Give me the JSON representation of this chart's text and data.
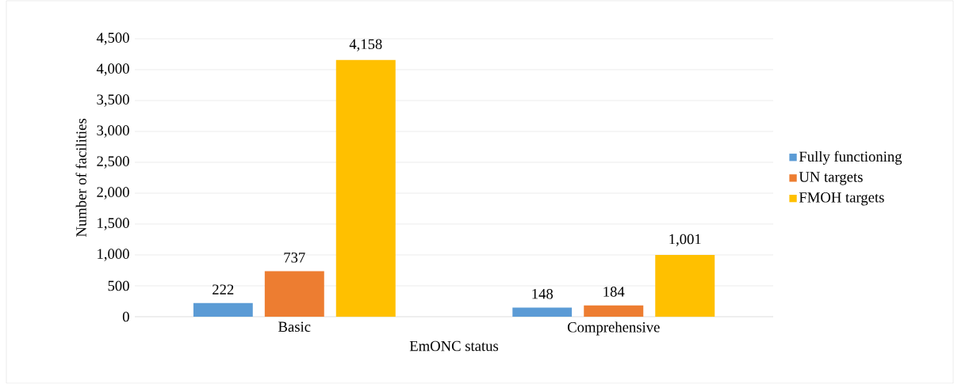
{
  "chart_data": {
    "type": "bar",
    "xlabel": "EmONC status",
    "ylabel": "Number of facilities",
    "categories": [
      "Basic",
      "Comprehensive"
    ],
    "series": [
      {
        "name": "Fully functioning",
        "color": "#5b9bd5",
        "values": [
          222,
          148
        ],
        "value_labels": [
          "222",
          "148"
        ]
      },
      {
        "name": "UN targets",
        "color": "#ed7d31",
        "values": [
          737,
          184
        ],
        "value_labels": [
          "737",
          "184"
        ]
      },
      {
        "name": "FMOH targets",
        "color": "#ffc000",
        "values": [
          4158,
          1001
        ],
        "value_labels": [
          "4,158",
          "1,001"
        ]
      }
    ],
    "ylim": [
      0,
      4500
    ],
    "yticks": [
      0,
      500,
      {
        "value": 1000,
        "label": "1,000"
      },
      {
        "value": 1500,
        "label": "1,500"
      },
      {
        "value": 2000,
        "label": "2,000"
      },
      {
        "value": 2500,
        "label": "2,500"
      },
      {
        "value": 3000,
        "label": "3,000"
      },
      {
        "value": 3500,
        "label": "3,500"
      },
      {
        "value": 4000,
        "label": "4,000"
      },
      {
        "value": 4500,
        "label": "4,500"
      }
    ],
    "grid": "y",
    "legend": "right"
  }
}
